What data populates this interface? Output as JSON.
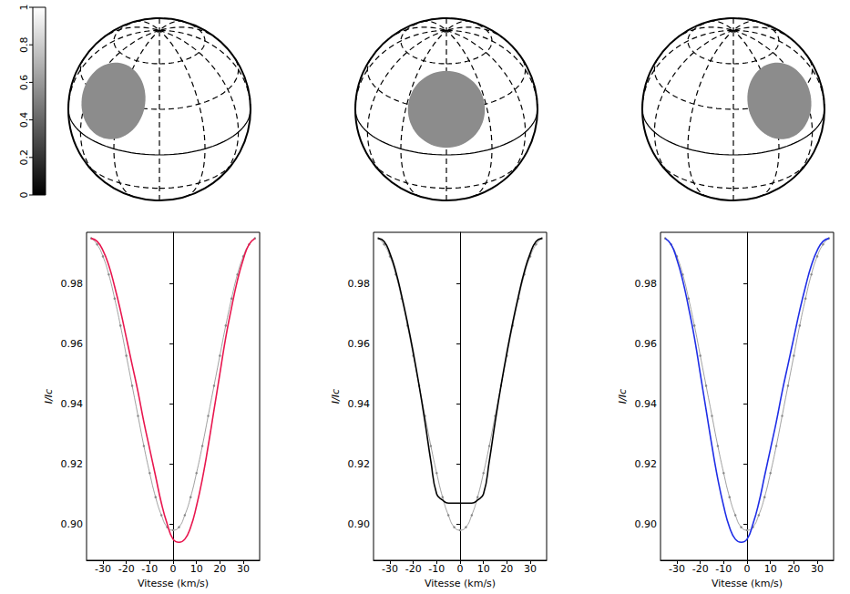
{
  "colorbar": {
    "range": [
      0,
      1
    ],
    "ticks": [
      0,
      0.2,
      0.4,
      0.6,
      0.8,
      1
    ]
  },
  "chart_data": [
    {
      "type": "line",
      "xlabel": "Vitesse (km/s)",
      "ylabel": "I/Ic",
      "x": [
        -35,
        -32.5,
        -30,
        -27.5,
        -25,
        -22.5,
        -20,
        -17.5,
        -15,
        -12.5,
        -10,
        -7.5,
        -5,
        -2.5,
        0,
        2.5,
        5,
        7.5,
        10,
        12.5,
        15,
        17.5,
        20,
        22.5,
        25,
        27.5,
        30,
        32.5,
        35
      ],
      "xlim": [
        -37,
        37
      ],
      "xticks": [
        -30,
        -20,
        -10,
        0,
        10,
        20,
        30
      ],
      "ylim": [
        0.888,
        0.997
      ],
      "yticks": [
        {
          "value": 0.9,
          "label": "0.90"
        },
        0.92,
        0.94,
        0.96,
        0.98
      ],
      "grid": false,
      "spot": {
        "longitude": -40,
        "latitude": 30,
        "radius": 25,
        "brightness": 0.55
      },
      "series": [
        {
          "color": "#888888",
          "marker": "o",
          "line_style": "solid",
          "values": [
            0.995,
            0.993,
            0.989,
            0.983,
            0.975,
            0.966,
            0.956,
            0.946,
            0.936,
            0.926,
            0.917,
            0.909,
            0.903,
            0.899,
            0.898,
            0.899,
            0.903,
            0.909,
            0.917,
            0.926,
            0.936,
            0.946,
            0.956,
            0.966,
            0.975,
            0.983,
            0.989,
            0.993,
            0.995
          ]
        },
        {
          "color": "#e8174f",
          "marker": "none",
          "line_style": "solid",
          "values": [
            0.995,
            0.994,
            0.991,
            0.986,
            0.979,
            0.971,
            0.962,
            0.953,
            0.944,
            0.934,
            0.925,
            0.916,
            0.907,
            0.9,
            0.895,
            0.894,
            0.895,
            0.899,
            0.906,
            0.915,
            0.926,
            0.938,
            0.95,
            0.962,
            0.972,
            0.981,
            0.988,
            0.993,
            0.995
          ]
        }
      ]
    },
    {
      "type": "line",
      "xlabel": "Vitesse (km/s)",
      "ylabel": "I/Ic",
      "x": [
        -35,
        -32.5,
        -30,
        -27.5,
        -25,
        -22.5,
        -20,
        -17.5,
        -15,
        -12.5,
        -10,
        -7.5,
        -5,
        -2.5,
        0,
        2.5,
        5,
        7.5,
        10,
        12.5,
        15,
        17.5,
        20,
        22.5,
        25,
        27.5,
        30,
        32.5,
        35
      ],
      "xlim": [
        -37,
        37
      ],
      "xticks": [
        -30,
        -20,
        -10,
        0,
        10,
        20,
        30
      ],
      "ylim": [
        0.888,
        0.997
      ],
      "yticks": [
        {
          "value": 0.9,
          "label": "0.90"
        },
        0.92,
        0.94,
        0.96,
        0.98
      ],
      "grid": false,
      "spot": {
        "longitude": 0,
        "latitude": 30,
        "radius": 25,
        "brightness": 0.55
      },
      "series": [
        {
          "color": "#888888",
          "marker": "o",
          "line_style": "solid",
          "values": [
            0.995,
            0.993,
            0.989,
            0.983,
            0.975,
            0.966,
            0.956,
            0.946,
            0.936,
            0.926,
            0.917,
            0.909,
            0.903,
            0.899,
            0.898,
            0.899,
            0.903,
            0.909,
            0.917,
            0.926,
            0.936,
            0.946,
            0.956,
            0.966,
            0.975,
            0.983,
            0.989,
            0.993,
            0.995
          ]
        },
        {
          "color": "#000000",
          "marker": "none",
          "line_style": "solid",
          "values": [
            0.995,
            0.994,
            0.99,
            0.984,
            0.976,
            0.967,
            0.957,
            0.946,
            0.934,
            0.921,
            0.91,
            0.908,
            0.907,
            0.907,
            0.907,
            0.907,
            0.907,
            0.908,
            0.91,
            0.921,
            0.934,
            0.946,
            0.957,
            0.967,
            0.976,
            0.984,
            0.99,
            0.994,
            0.995
          ]
        }
      ]
    },
    {
      "type": "line",
      "xlabel": "Vitesse (km/s)",
      "ylabel": "I/Ic",
      "x": [
        -35,
        -32.5,
        -30,
        -27.5,
        -25,
        -22.5,
        -20,
        -17.5,
        -15,
        -12.5,
        -10,
        -7.5,
        -5,
        -2.5,
        0,
        2.5,
        5,
        7.5,
        10,
        12.5,
        15,
        17.5,
        20,
        22.5,
        25,
        27.5,
        30,
        32.5,
        35
      ],
      "xlim": [
        -37,
        37
      ],
      "xticks": [
        -30,
        -20,
        -10,
        0,
        10,
        20,
        30
      ],
      "ylim": [
        0.888,
        0.997
      ],
      "yticks": [
        {
          "value": 0.9,
          "label": "0.90"
        },
        0.92,
        0.94,
        0.96,
        0.98
      ],
      "grid": false,
      "spot": {
        "longitude": 40,
        "latitude": 30,
        "radius": 25,
        "brightness": 0.55
      },
      "series": [
        {
          "color": "#888888",
          "marker": "o",
          "line_style": "solid",
          "values": [
            0.995,
            0.993,
            0.989,
            0.983,
            0.975,
            0.966,
            0.956,
            0.946,
            0.936,
            0.926,
            0.917,
            0.909,
            0.903,
            0.899,
            0.898,
            0.899,
            0.903,
            0.909,
            0.917,
            0.926,
            0.936,
            0.946,
            0.956,
            0.966,
            0.975,
            0.983,
            0.989,
            0.993,
            0.995
          ]
        },
        {
          "color": "#1f2ee6",
          "marker": "none",
          "line_style": "solid",
          "values": [
            0.995,
            0.993,
            0.988,
            0.981,
            0.972,
            0.962,
            0.95,
            0.938,
            0.926,
            0.915,
            0.906,
            0.899,
            0.895,
            0.894,
            0.895,
            0.9,
            0.907,
            0.916,
            0.925,
            0.934,
            0.944,
            0.953,
            0.962,
            0.971,
            0.979,
            0.986,
            0.991,
            0.994,
            0.995
          ]
        }
      ]
    }
  ]
}
